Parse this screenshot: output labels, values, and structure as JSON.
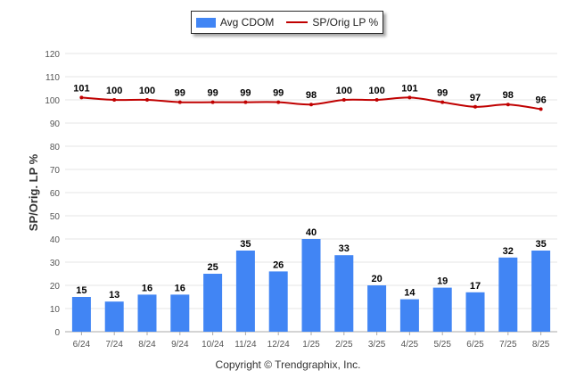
{
  "legend": {
    "bar_label": "Avg CDOM",
    "line_label": "SP/Orig LP %"
  },
  "copyright": "Copyright © Trendgraphix, Inc.",
  "chart_data": {
    "type": "bar",
    "title": "",
    "xlabel": "",
    "ylabel": "SP/Orig. LP %",
    "ylim": [
      0,
      120
    ],
    "yticks": [
      0,
      10,
      20,
      30,
      40,
      50,
      60,
      70,
      80,
      90,
      100,
      110,
      120
    ],
    "grid": true,
    "legend_position": "top-center",
    "categories": [
      "6/24",
      "7/24",
      "8/24",
      "9/24",
      "10/24",
      "11/24",
      "12/24",
      "1/25",
      "2/25",
      "3/25",
      "4/25",
      "5/25",
      "6/25",
      "7/25",
      "8/25"
    ],
    "series": [
      {
        "name": "Avg CDOM",
        "type": "bar",
        "color": "#4185F4",
        "values": [
          15,
          13,
          16,
          16,
          25,
          35,
          26,
          40,
          33,
          20,
          14,
          19,
          17,
          32,
          35
        ]
      },
      {
        "name": "SP/Orig LP %",
        "type": "line",
        "color": "#C00000",
        "values": [
          101,
          100,
          100,
          99,
          99,
          99,
          99,
          98,
          100,
          100,
          101,
          99,
          97,
          98,
          96
        ]
      }
    ]
  }
}
